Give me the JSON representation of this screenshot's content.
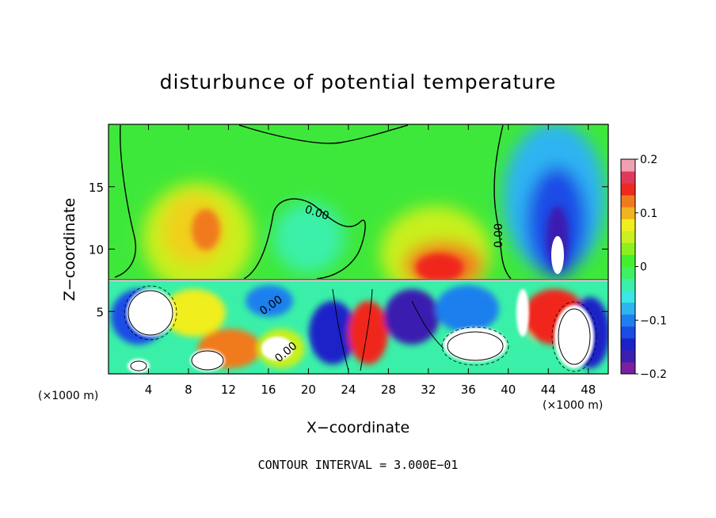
{
  "chart_data": {
    "type": "heatmap",
    "title": "disturbunce of potential temperature",
    "xlabel": "X−coordinate",
    "ylabel": "Z−coordinate",
    "x_unit_label": "(×1000 m)",
    "x_unit_label_right": "(×1000 m)",
    "xlim": [
      0,
      50
    ],
    "ylim": [
      0,
      20
    ],
    "x_ticks": [
      4,
      8,
      12,
      16,
      20,
      24,
      28,
      32,
      36,
      40,
      44,
      48
    ],
    "y_ticks": [
      5,
      10,
      15
    ],
    "footer": "CONTOUR INTERVAL = 3.000E−01",
    "contour_labels": [
      "0.00",
      "0.00",
      "0.00",
      "0.00"
    ],
    "colorbar": {
      "range": [
        -0.2,
        0.2
      ],
      "ticks": [
        {
          "value": 0.2,
          "label": "0.2"
        },
        {
          "value": 0.1,
          "label": "0.1"
        },
        {
          "value": 0,
          "label": "0"
        },
        {
          "value": -0.1,
          "label": "−0.1"
        },
        {
          "value": -0.2,
          "label": "−0.2"
        }
      ],
      "colors": [
        "#7a1fa0",
        "#3a1fb0",
        "#1a22c8",
        "#1a4ce6",
        "#1f7fee",
        "#2fb4f2",
        "#3ae6e6",
        "#3af0a8",
        "#3ff060",
        "#43f02e",
        "#8af01e",
        "#c8f01e",
        "#f0ee1e",
        "#f0b41e",
        "#f07a1e",
        "#f0281e",
        "#e03a5a",
        "#f0a0b0"
      ]
    },
    "upper_layer": {
      "z_range": [
        7.5,
        20
      ],
      "background_value": 0.0,
      "features": [
        {
          "x": 9,
          "z": 12,
          "value": 0.13
        },
        {
          "x": 16,
          "z": 10,
          "value": 0.07
        },
        {
          "x": 20,
          "z": 10,
          "value": -0.03
        },
        {
          "x": 32.5,
          "z": 9.5,
          "value": 0.15
        },
        {
          "x": 30,
          "z": 15,
          "value": 0.07
        },
        {
          "x": 45,
          "z": 11,
          "value": -0.2
        },
        {
          "x": 44,
          "z": 15,
          "value": -0.13
        }
      ]
    },
    "lower_layer": {
      "z_range": [
        0,
        7.5
      ],
      "description_values_min": -0.2,
      "description_values_max": 0.2
    }
  }
}
